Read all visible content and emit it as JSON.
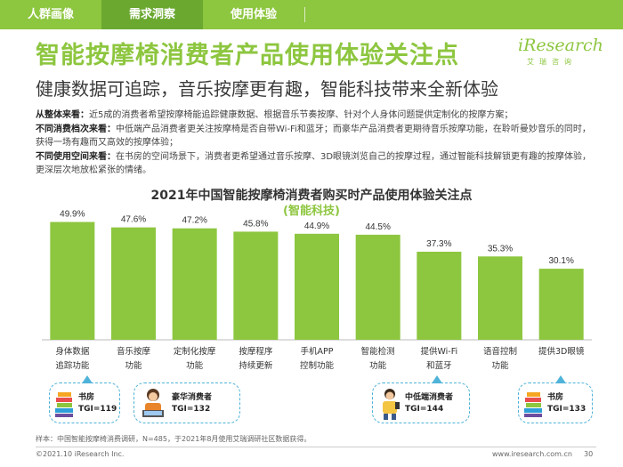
{
  "tabs": [
    {
      "label": "人群画像"
    },
    {
      "label": "需求洞察"
    },
    {
      "label": "使用体验"
    }
  ],
  "header": {
    "title": "智能按摩椅消费者产品使用体验关注点",
    "subtitle": "健康数据可追踪，音乐按摩更有趣，智能科技带来全新体验"
  },
  "logo": {
    "word": "iResearch",
    "sub": "艾瑞咨询"
  },
  "bullets": [
    {
      "lead": "从整体来看：",
      "text": "近5成的消费者希望按摩椅能追踪健康数据、根据音乐节奏按摩、针对个人身体问题提供定制化的按摩方案；"
    },
    {
      "lead": "不同消费档次来看：",
      "text": "中低端产品消费者更关注按摩椅是否自带Wi-Fi和蓝牙；而豪华产品消费者更期待音乐按摩功能，在聆听曼妙音乐的同时，获得一场有趣而又高效的按摩体验；"
    },
    {
      "lead": "不同使用空间来看：",
      "text": "在书房的空间场景下，消费者更希望通过音乐按摩、3D眼镜浏览自己的按摩过程，通过智能科技解锁更有趣的按摩体验，更深层次地放松紧张的情绪。"
    }
  ],
  "chart_data": {
    "type": "bar",
    "title": "2021年中国智能按摩椅消费者购买时产品使用体验关注点",
    "subtitle": "(智能科技)",
    "categories": [
      [
        "身体数据",
        "追踪功能"
      ],
      [
        "音乐按摩",
        "功能"
      ],
      [
        "定制化按摩",
        "功能"
      ],
      [
        "按摩程序",
        "持续更新"
      ],
      [
        "手机APP",
        "控制功能"
      ],
      [
        "智能检测",
        "功能"
      ],
      [
        "提供Wi-Fi",
        "和蓝牙"
      ],
      [
        "语音控制",
        "功能"
      ],
      [
        "提供3D眼镜",
        ""
      ]
    ],
    "values": [
      49.9,
      47.6,
      47.2,
      45.8,
      44.9,
      44.5,
      37.3,
      35.3,
      30.1
    ],
    "value_labels": [
      "49.9%",
      "47.6%",
      "47.2%",
      "45.8%",
      "44.9%",
      "44.5%",
      "37.3%",
      "35.3%",
      "30.1%"
    ],
    "ylim": [
      0,
      55
    ],
    "bar_color": "#8dc63f",
    "xlabel": "",
    "ylabel": ""
  },
  "callouts": [
    {
      "label": "书房",
      "tgi": "TGI=119"
    },
    {
      "label": "豪华消费者",
      "tgi": "TGI=132"
    },
    {
      "label": "中低端消费者",
      "tgi": "TGI=144"
    },
    {
      "label": "书房",
      "tgi": "TGI=133"
    }
  ],
  "footnote": "样本：中国智能按摩椅消费调研，N=485，于2021年8月使用艾瑞调研社区数据获得。",
  "footer": {
    "copyright": "©2021.10 iResearch Inc.",
    "site": "www.iresearch.com.cn",
    "page": "30"
  },
  "colors": {
    "brand": "#8dc63f",
    "brand_dark": "#6aa82f",
    "callout": "#4fb3d9"
  }
}
